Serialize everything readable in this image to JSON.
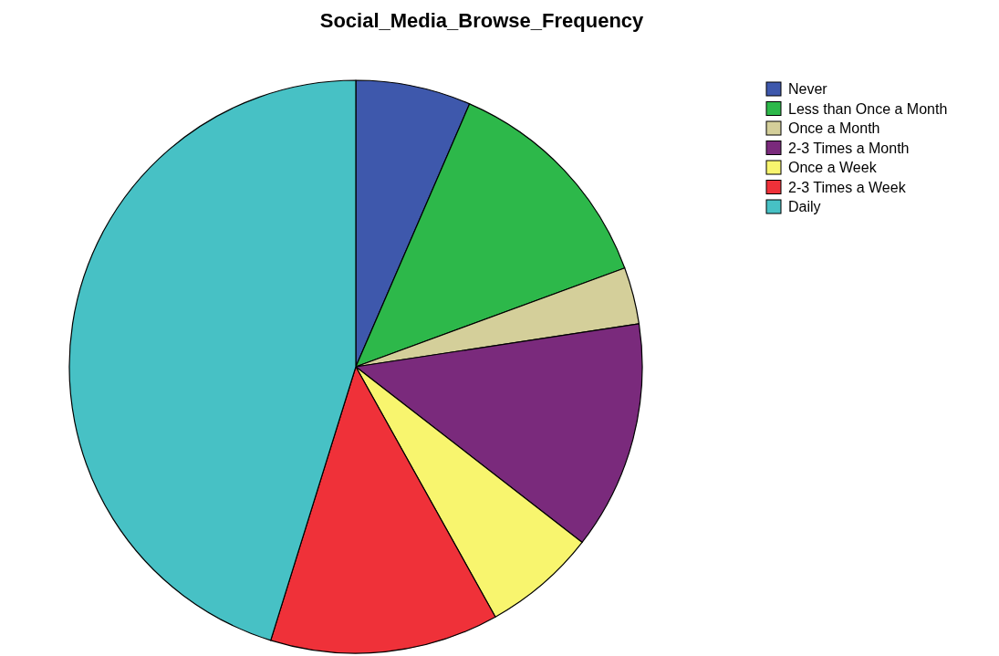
{
  "chart_data": {
    "type": "pie",
    "title": "Social_Media_Browse_Frequency",
    "categories": [
      "Never",
      "Less than Once a Month",
      "Once a Month",
      "2-3 Times a Month",
      "Once a Week",
      "2-3 Times a Week",
      "Daily"
    ],
    "values": [
      6.5,
      12.9,
      3.2,
      12.9,
      6.4,
      12.9,
      45.2
    ],
    "colors": [
      "#3e58ac",
      "#2db84a",
      "#d4cf9a",
      "#7a2a7c",
      "#f8f56e",
      "#ef3139",
      "#47c1c5"
    ],
    "legend": "top right"
  }
}
